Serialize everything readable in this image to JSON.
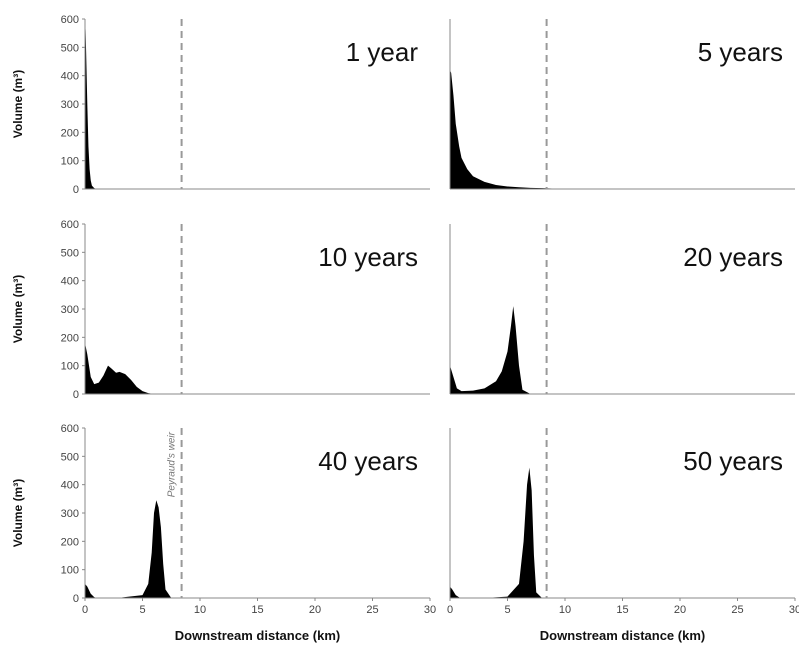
{
  "chart_data": {
    "type": "area",
    "x_unit_label": "Downstream distance (km)",
    "y_unit_label": "Volume (m³)",
    "xlim": [
      0,
      30
    ],
    "ylim": [
      0,
      600
    ],
    "x_ticks": [
      0,
      5,
      10,
      15,
      20,
      25,
      30
    ],
    "y_ticks": [
      0,
      100,
      200,
      300,
      400,
      500,
      600
    ],
    "weir": {
      "x": 8.4,
      "label": "Peyraud's weir",
      "shown_in_panel": 4
    },
    "colors": {
      "fill": "#000000",
      "weir_line": "#999999",
      "axis": "#888888"
    },
    "panels": [
      {
        "label": "1 year",
        "x": [
          0,
          0.05,
          0.1,
          0.2,
          0.3,
          0.4,
          0.5,
          0.6,
          0.8,
          1.0,
          30
        ],
        "y": [
          600,
          560,
          480,
          300,
          150,
          70,
          30,
          12,
          3,
          0,
          0
        ]
      },
      {
        "label": "5 years",
        "x": [
          0,
          0.1,
          0.3,
          0.5,
          0.8,
          1.0,
          1.5,
          2.0,
          3.0,
          4.0,
          5.0,
          6.0,
          7.0,
          8.0,
          10.0,
          30
        ],
        "y": [
          420,
          410,
          330,
          230,
          150,
          110,
          70,
          45,
          25,
          14,
          9,
          6,
          4,
          3,
          0,
          0
        ]
      },
      {
        "label": "10 years",
        "x": [
          0,
          0.2,
          0.5,
          0.8,
          1.2,
          1.6,
          2.0,
          2.3,
          2.7,
          3.0,
          3.5,
          4.0,
          4.5,
          5.0,
          5.5,
          6.0,
          30
        ],
        "y": [
          180,
          140,
          60,
          35,
          40,
          65,
          100,
          90,
          75,
          78,
          70,
          50,
          25,
          10,
          3,
          0,
          0
        ]
      },
      {
        "label": "20 years",
        "x": [
          0,
          0.3,
          0.6,
          1.0,
          2.0,
          3.0,
          4.0,
          4.5,
          5.0,
          5.3,
          5.5,
          5.7,
          6.0,
          6.3,
          7.0,
          30
        ],
        "y": [
          100,
          60,
          20,
          10,
          12,
          20,
          45,
          80,
          150,
          240,
          310,
          240,
          100,
          15,
          0,
          0
        ]
      },
      {
        "label": "40 years",
        "x": [
          0,
          0.2,
          0.5,
          0.8,
          1.0,
          3.0,
          5.0,
          5.5,
          5.8,
          6.0,
          6.2,
          6.4,
          6.6,
          6.8,
          7.0,
          7.5,
          30
        ],
        "y": [
          50,
          40,
          15,
          3,
          0,
          1,
          10,
          50,
          160,
          300,
          345,
          320,
          250,
          120,
          30,
          0,
          0
        ]
      },
      {
        "label": "50 years",
        "x": [
          0,
          0.2,
          0.5,
          0.8,
          1.0,
          3.0,
          5.0,
          6.0,
          6.4,
          6.7,
          6.9,
          7.1,
          7.3,
          7.5,
          8.0,
          30
        ],
        "y": [
          40,
          30,
          10,
          2,
          0,
          0,
          5,
          50,
          200,
          400,
          460,
          380,
          150,
          20,
          0,
          0
        ]
      }
    ]
  }
}
